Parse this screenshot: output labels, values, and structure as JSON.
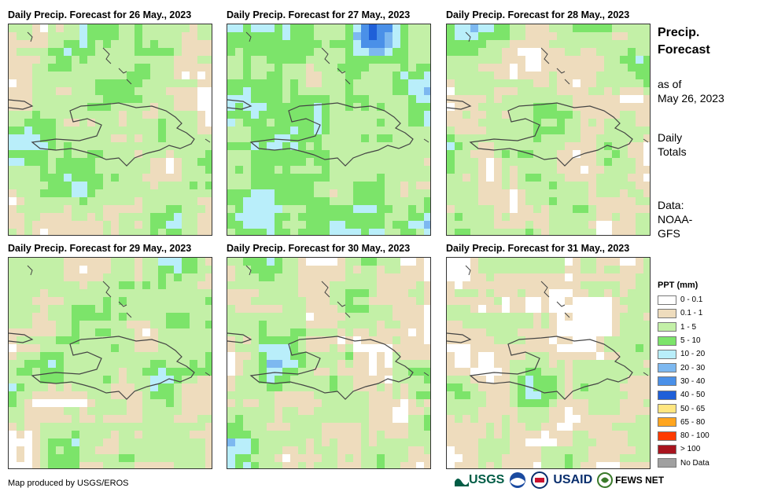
{
  "panels": [
    {
      "title": "Daily Precip. Forecast for 26 May., 2023",
      "seed": 11,
      "bias": 0.15
    },
    {
      "title": "Daily Precip. Forecast for 27 May., 2023",
      "seed": 23,
      "bias": 0.7
    },
    {
      "title": "Daily Precip. Forecast for 28 May., 2023",
      "seed": 37,
      "bias": 0.05
    },
    {
      "title": "Daily Precip. Forecast for 29 May., 2023",
      "seed": 41,
      "bias": 0.0
    },
    {
      "title": "Daily Precip. Forecast for 30 May., 2023",
      "seed": 53,
      "bias": -0.1
    },
    {
      "title": "Daily Precip. Forecast for 31 May., 2023",
      "seed": 67,
      "bias": -0.25
    }
  ],
  "sidebar": {
    "title_line1": "Precip.",
    "title_line2": "Forecast",
    "asof_line1": "as of",
    "asof_line2": "May 26, 2023",
    "totals_line1": "Daily",
    "totals_line2": "Totals",
    "data_line1": "Data:",
    "data_line2": "NOAA-",
    "data_line3": "GFS"
  },
  "legend": {
    "title": "PPT (mm)",
    "items": [
      {
        "label": "0 - 0.1",
        "color": "#ffffff"
      },
      {
        "label": "0.1 - 1",
        "color": "#eedcbd"
      },
      {
        "label": "1 - 5",
        "color": "#c3f0a7"
      },
      {
        "label": "5 - 10",
        "color": "#7ce46a"
      },
      {
        "label": "10 - 20",
        "color": "#b9eefa"
      },
      {
        "label": "20 - 30",
        "color": "#7db8f0"
      },
      {
        "label": "30 - 40",
        "color": "#4a90e8"
      },
      {
        "label": "40 - 50",
        "color": "#1f5fd8"
      },
      {
        "label": "50 - 65",
        "color": "#ffe680"
      },
      {
        "label": "65 - 80",
        "color": "#ffa51f"
      },
      {
        "label": "80 - 100",
        "color": "#ff3a00"
      },
      {
        "label": "> 100",
        "color": "#a8141e"
      },
      {
        "label": "No Data",
        "color": "#a0a0a0"
      }
    ]
  },
  "credit": "Map produced by USGS/EROS",
  "logos": {
    "usgs": "USGS",
    "usaid": "USAID",
    "fewsnet": "FEWS NET"
  }
}
